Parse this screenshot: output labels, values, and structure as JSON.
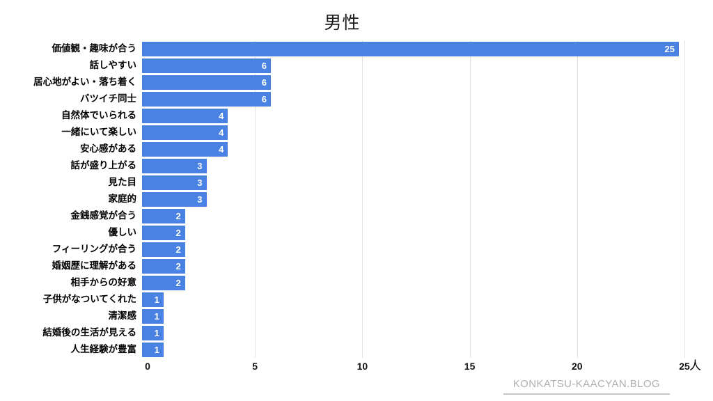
{
  "chart_data": {
    "type": "bar",
    "orientation": "horizontal",
    "title": "男性",
    "unit": "人",
    "categories": [
      "価値観・趣味が合う",
      "話しやすい",
      "居心地がよい・落ち着く",
      "バツイチ同士",
      "自然体でいられる",
      "一緒にいて楽しい",
      "安心感がある",
      "話が盛り上がる",
      "見た目",
      "家庭的",
      "金銭感覚が合う",
      "優しい",
      "フィーリングが合う",
      "婚姻歴に理解がある",
      "相手からの好意",
      "子供がなついてくれた",
      "清潔感",
      "結婚後の生活が見える",
      "人生経験が豊富"
    ],
    "values": [
      25,
      6,
      6,
      6,
      4,
      4,
      4,
      3,
      3,
      3,
      2,
      2,
      2,
      2,
      2,
      1,
      1,
      1,
      1
    ],
    "xlim": [
      0,
      25
    ],
    "xticks": [
      0,
      5,
      10,
      15,
      20,
      25
    ],
    "grid": "vertical-only",
    "legend": "none",
    "bar_color": "#4a82e4",
    "gridline_color": "#e2e2e2",
    "value_label_color": "#ffffff"
  },
  "footer": {
    "credit": "KONKATSU-KAACYAN.BLOG"
  }
}
